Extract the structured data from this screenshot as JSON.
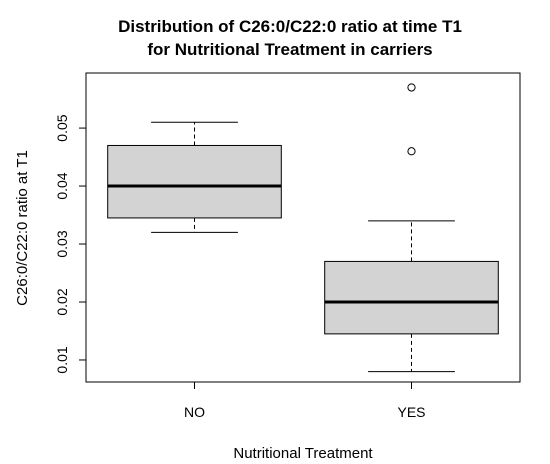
{
  "chart_data": {
    "type": "boxplot",
    "title_lines": [
      "Distribution of C26:0/C22:0 ratio at time T1",
      "for Nutritional Treatment in carriers"
    ],
    "xlabel": "Nutritional Treatment",
    "ylabel": "C26:0/C22:0 ratio at T1",
    "categories": [
      "NO",
      "YES"
    ],
    "ylim": [
      0.0062,
      0.0595
    ],
    "y_ticks": [
      0.01,
      0.02,
      0.03,
      0.04,
      0.05
    ],
    "y_tick_labels": [
      "0.01",
      "0.02",
      "0.03",
      "0.04",
      "0.05"
    ],
    "boxes": [
      {
        "category": "NO",
        "whisker_low": 0.032,
        "q1": 0.0345,
        "median": 0.04,
        "q3": 0.047,
        "whisker_high": 0.051,
        "outliers": []
      },
      {
        "category": "YES",
        "whisker_low": 0.008,
        "q1": 0.0145,
        "median": 0.02,
        "q3": 0.027,
        "whisker_high": 0.034,
        "outliers": [
          0.046,
          0.057
        ]
      }
    ],
    "box_fill": "#d3d3d3",
    "grid": false
  }
}
